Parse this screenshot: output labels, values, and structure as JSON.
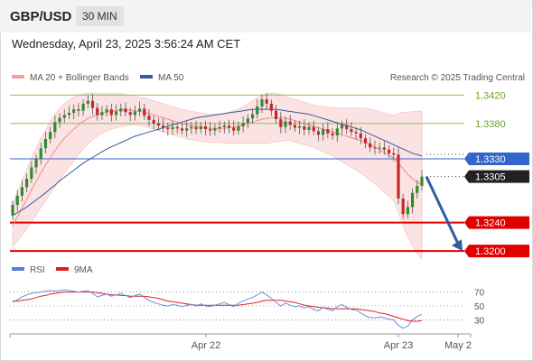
{
  "header": {
    "symbol": "GBP/USD",
    "timeframe": "30 MIN",
    "datetime": "Wednesday, April 23, 2025 3:56:24 AM CET"
  },
  "legend": {
    "items": [
      {
        "label": "MA 20 + Bollinger Bands",
        "color": "#f4a0a0"
      },
      {
        "label": "MA 50",
        "color": "#3a5a9a"
      }
    ],
    "copyright": "Research © 2025 Trading Central"
  },
  "rsi_legend": {
    "items": [
      {
        "label": "RSI",
        "color": "#5b7fd0"
      },
      {
        "label": "9MA",
        "color": "#e02020"
      }
    ]
  },
  "chart_data": {
    "type": "candlestick",
    "symbol": "GBP/USD",
    "timeframe": "30 MIN",
    "x_ticks": [
      "Apr 22",
      "Apr 23",
      "May 2"
    ],
    "levels": [
      {
        "label": "1.3420",
        "value": 1.342,
        "kind": "resistance",
        "color": "#8bc34a"
      },
      {
        "label": "1.3380",
        "value": 1.338,
        "kind": "resistance",
        "color": "#8bc34a"
      },
      {
        "label": "1.3330",
        "value": 1.333,
        "kind": "pivot",
        "color": "#3366cc"
      },
      {
        "label": "1.3305",
        "value": 1.3305,
        "kind": "last",
        "color": "#222222"
      },
      {
        "label": "1.3240",
        "value": 1.324,
        "kind": "target",
        "color": "#e00000"
      },
      {
        "label": "1.3200",
        "value": 1.32,
        "kind": "target",
        "color": "#e00000"
      }
    ],
    "close": [
      1.3265,
      1.3278,
      1.329,
      1.3302,
      1.3318,
      1.333,
      1.3345,
      1.3358,
      1.3368,
      1.3382,
      1.3388,
      1.3392,
      1.3395,
      1.34,
      1.3398,
      1.3408,
      1.3412,
      1.3402,
      1.3392,
      1.3396,
      1.34,
      1.3392,
      1.3397,
      1.3401,
      1.3396,
      1.3392,
      1.3397,
      1.3401,
      1.3391,
      1.3385,
      1.338,
      1.3377,
      1.3374,
      1.3372,
      1.3375,
      1.3373,
      1.337,
      1.3373,
      1.3375,
      1.3372,
      1.3376,
      1.3372,
      1.337,
      1.3373,
      1.3375,
      1.3377,
      1.3374,
      1.337,
      1.3376,
      1.3381,
      1.3387,
      1.3393,
      1.3404,
      1.3414,
      1.3408,
      1.3398,
      1.3386,
      1.3375,
      1.3383,
      1.3378,
      1.3374,
      1.3376,
      1.3371,
      1.3375,
      1.3369,
      1.3364,
      1.3372,
      1.3366,
      1.3363,
      1.3373,
      1.3378,
      1.3372,
      1.3368,
      1.3366,
      1.3359,
      1.3352,
      1.3346,
      1.3345,
      1.3346,
      1.3343,
      1.3338,
      1.3336,
      1.3274,
      1.3252,
      1.3262,
      1.3282,
      1.3292,
      1.3305
    ],
    "ma20": [
      1.3236,
      1.3248,
      1.326,
      1.3273,
      1.3286,
      1.3298,
      1.331,
      1.3321,
      1.3332,
      1.3342,
      1.3351,
      1.3359,
      1.3366,
      1.3372,
      1.3378,
      1.3383,
      1.3387,
      1.339,
      1.3392,
      1.3394,
      1.3396,
      1.3397,
      1.3398,
      1.3399,
      1.3399,
      1.3399,
      1.3398,
      1.3397,
      1.3396,
      1.3394,
      1.3392,
      1.339,
      1.3388,
      1.3386,
      1.3384,
      1.3382,
      1.338,
      1.3378,
      1.3377,
      1.3376,
      1.3375,
      1.3374,
      1.3373,
      1.3373,
      1.3373,
      1.3373,
      1.3374,
      1.3375,
      1.3376,
      1.3378,
      1.338,
      1.3382,
      1.3384,
      1.3386,
      1.3387,
      1.3388,
      1.3388,
      1.3388,
      1.3387,
      1.3386,
      1.3384,
      1.3382,
      1.338,
      1.3378,
      1.3376,
      1.3374,
      1.3372,
      1.337,
      1.3368,
      1.3366,
      1.3364,
      1.3362,
      1.336,
      1.3358,
      1.3356,
      1.3353,
      1.335,
      1.3347,
      1.3343,
      1.3339,
      1.3335,
      1.3331,
      1.3324,
      1.3316,
      1.3308,
      1.3302,
      1.3297,
      1.3293
    ],
    "ma50": [
      1.325,
      1.3254,
      1.3258,
      1.3262,
      1.3267,
      1.3272,
      1.3277,
      1.3282,
      1.3288,
      1.3293,
      1.3299,
      1.3304,
      1.3309,
      1.3314,
      1.3319,
      1.3324,
      1.3328,
      1.3332,
      1.3336,
      1.334,
      1.3344,
      1.3347,
      1.335,
      1.3353,
      1.3356,
      1.3359,
      1.3362,
      1.3364,
      1.3366,
      1.3368,
      1.337,
      1.3372,
      1.3374,
      1.3376,
      1.3378,
      1.338,
      1.3382,
      1.3384,
      1.3386,
      1.3388,
      1.3389,
      1.339,
      1.3391,
      1.3392,
      1.3393,
      1.3394,
      1.3395,
      1.3396,
      1.3397,
      1.3398,
      1.3399,
      1.34,
      1.34,
      1.34,
      1.34,
      1.34,
      1.34,
      1.3399,
      1.3398,
      1.3397,
      1.3396,
      1.3395,
      1.3394,
      1.3393,
      1.3391,
      1.3389,
      1.3387,
      1.3385,
      1.3383,
      1.3381,
      1.3379,
      1.3377,
      1.3375,
      1.3373,
      1.3371,
      1.3368,
      1.3365,
      1.3362,
      1.3359,
      1.3356,
      1.3353,
      1.335,
      1.3347,
      1.3344,
      1.3341,
      1.3338,
      1.3336,
      1.3334
    ],
    "bb_width": [
      0.003,
      0.0034,
      0.0038,
      0.0042,
      0.0045,
      0.0047,
      0.0049,
      0.005,
      0.0051,
      0.0051,
      0.005,
      0.0049,
      0.0047,
      0.0045,
      0.0042,
      0.0039,
      0.0036,
      0.0033,
      0.003,
      0.0028,
      0.0026,
      0.0025,
      0.0024,
      0.0023,
      0.0022,
      0.0021,
      0.002,
      0.002,
      0.002,
      0.002,
      0.002,
      0.002,
      0.002,
      0.002,
      0.002,
      0.002,
      0.002,
      0.002,
      0.002,
      0.002,
      0.002,
      0.002,
      0.002,
      0.002,
      0.002,
      0.0021,
      0.0022,
      0.0023,
      0.0024,
      0.0026,
      0.0028,
      0.003,
      0.0032,
      0.0034,
      0.0035,
      0.0035,
      0.0034,
      0.0033,
      0.0031,
      0.003,
      0.003,
      0.003,
      0.003,
      0.003,
      0.003,
      0.0031,
      0.0032,
      0.0033,
      0.0034,
      0.0036,
      0.0038,
      0.004,
      0.0042,
      0.0044,
      0.0046,
      0.0048,
      0.005,
      0.0052,
      0.0054,
      0.0056,
      0.0058,
      0.006,
      0.007,
      0.008,
      0.0088,
      0.0095,
      0.01,
      0.0105
    ],
    "projection": {
      "from": 1.3305,
      "to": 1.32
    },
    "price_range": [
      1.3195,
      1.3432
    ],
    "rsi": {
      "ticks": [
        "70",
        "50",
        "30"
      ],
      "levels": [
        70,
        50,
        30
      ],
      "range": [
        15,
        85
      ],
      "values": [
        55,
        59,
        63,
        66,
        68,
        69,
        70,
        71,
        72,
        71,
        72,
        73,
        72,
        71,
        70,
        71,
        72,
        68,
        63,
        65,
        67,
        64,
        66,
        68,
        65,
        62,
        65,
        67,
        62,
        58,
        55,
        53,
        51,
        50,
        52,
        51,
        49,
        51,
        52,
        50,
        53,
        50,
        49,
        51,
        53,
        55,
        52,
        49,
        54,
        57,
        60,
        62,
        66,
        70,
        66,
        61,
        55,
        50,
        54,
        51,
        49,
        50,
        47,
        49,
        45,
        43,
        48,
        45,
        43,
        49,
        52,
        48,
        45,
        44,
        40,
        36,
        33,
        33,
        34,
        33,
        31,
        30,
        22,
        18,
        21,
        30,
        35,
        38
      ],
      "ma9": [
        57,
        57,
        58,
        59,
        60,
        62,
        64,
        65,
        67,
        68,
        69,
        70,
        70,
        70,
        70,
        70,
        70,
        70,
        69,
        68,
        67,
        66,
        66,
        65,
        65,
        64,
        64,
        64,
        64,
        63,
        62,
        61,
        59,
        57,
        56,
        55,
        54,
        53,
        52,
        51,
        51,
        51,
        51,
        51,
        51,
        51,
        51,
        51,
        51,
        52,
        53,
        54,
        55,
        57,
        58,
        58,
        58,
        58,
        57,
        56,
        55,
        53,
        51,
        50,
        49,
        48,
        47,
        47,
        46,
        46,
        46,
        46,
        46,
        46,
        45,
        44,
        43,
        42,
        40,
        39,
        37,
        35,
        33,
        31,
        29,
        28,
        28,
        29
      ]
    }
  }
}
